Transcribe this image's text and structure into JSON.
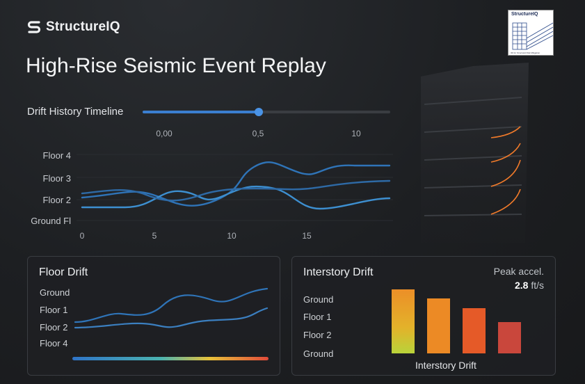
{
  "app": {
    "brand_name": "StructureIQ",
    "page_title": "High-Rise Seismic Event Replay",
    "thumbnail": {
      "title": "StructureIQ",
      "caption": "3D for Structural Risk Mitigation"
    }
  },
  "timeline": {
    "label": "Drift History  Timeline",
    "ticks": [
      "0,00",
      "0,5",
      "10"
    ],
    "position": 0.47
  },
  "drift_history": {
    "y_labels": [
      "Floor 4",
      "Floor 3",
      "Floor 2",
      "Ground Fl"
    ],
    "x_labels": [
      "0",
      "5",
      "10",
      "15"
    ]
  },
  "floor_drift_panel": {
    "title": "Floor Drift",
    "y_labels": [
      "Ground",
      "Floor  1",
      "Floor  2",
      "Floor  4"
    ]
  },
  "interstory_panel": {
    "title": "Interstory Drift",
    "peak_label": "Peak accel.",
    "peak_value": "2.8",
    "peak_unit": " ft/s",
    "y_labels": [
      "Ground",
      "Floor  1",
      "Floor  2",
      "Ground"
    ],
    "x_label": "Interstory Drift"
  },
  "colors": {
    "accent": "#3b7fd0",
    "line": "#3d8fd0",
    "orange": "#f07a2a",
    "bar_colors": [
      "#e9a22c",
      "#ec8a25",
      "#e55a28",
      "#d04a3a"
    ]
  },
  "icons": [
    "s-logo-icon"
  ]
}
